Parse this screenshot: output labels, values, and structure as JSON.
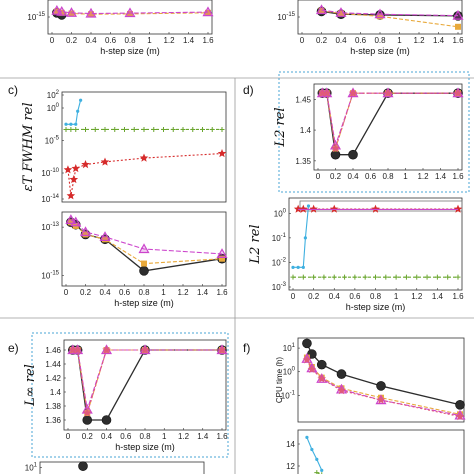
{
  "panel_labels": [
    "c)",
    "d)",
    "e)",
    "f)"
  ],
  "chart_data": [
    {
      "id": "a",
      "type": "line",
      "xlabel": "h-step size (m)",
      "ylim_log": [
        -16,
        -14
      ],
      "yticks": [
        "10^{-15}"
      ],
      "xticks": [
        "0",
        "0.2",
        "0.4",
        "0.6",
        "0.8",
        "1",
        "1.2",
        "1.4",
        "1.6"
      ],
      "xlim": [
        0,
        1.6
      ],
      "series": [
        {
          "color": "#2d2d2d",
          "marker": "circle",
          "dash": "none",
          "x": [
            0.05,
            0.1
          ],
          "y": [
            -14.7,
            -14.85
          ]
        },
        {
          "color": "#e8a93b",
          "marker": "square",
          "dash": "4,2",
          "x": [
            0.05,
            0.1,
            0.2,
            0.4,
            0.8,
            1.6
          ],
          "y": [
            -14.6,
            -14.7,
            -14.75,
            -14.8,
            -14.78,
            -14.7
          ]
        },
        {
          "color": "#cc44cc",
          "marker": "triangle",
          "dash": "5,2",
          "x": [
            0.05,
            0.1,
            0.2,
            0.4,
            0.8,
            1.6
          ],
          "y": [
            -14.55,
            -14.62,
            -14.7,
            -14.75,
            -14.72,
            -14.65
          ]
        }
      ]
    },
    {
      "id": "b",
      "type": "line",
      "xlabel": "h-step size (m)",
      "ylim_log": [
        -16,
        -14
      ],
      "yticks": [
        "10^{-15}"
      ],
      "xticks": [
        "0",
        "0.2",
        "0.4",
        "0.6",
        "0.8",
        "1",
        "1.2",
        "1.4",
        "1.6"
      ],
      "xlim": [
        0,
        1.6
      ],
      "series": [
        {
          "color": "#2d2d2d",
          "marker": "circle",
          "dash": "none",
          "x": [
            0.2,
            0.4,
            0.8,
            1.6
          ],
          "y": [
            -14.6,
            -14.8,
            -14.85,
            -14.92
          ]
        },
        {
          "color": "#e8a93b",
          "marker": "square",
          "dash": "4,2",
          "x": [
            0.2,
            0.4,
            0.8,
            1.6
          ],
          "y": [
            -14.55,
            -14.75,
            -14.95,
            -15.7
          ]
        },
        {
          "color": "#cc44cc",
          "marker": "triangle",
          "dash": "5,2",
          "x": [
            0.2,
            0.4,
            0.8,
            1.6
          ],
          "y": [
            -14.5,
            -14.7,
            -14.8,
            -14.9
          ]
        }
      ]
    },
    {
      "id": "c_top",
      "type": "line",
      "ylabel": "ε_{T_{FWHM}rel}",
      "ylim_log": [
        -14,
        2
      ],
      "yticks": [
        "10^{2}",
        "10^{0}",
        "10^{-5}",
        "10^{-10}",
        "10^{-14}"
      ],
      "ytick_vals": [
        2,
        0,
        -5,
        -10,
        -14
      ],
      "xlim": [
        0,
        1.6
      ],
      "series": [
        {
          "color": "#3fb0e0",
          "marker": "dot",
          "dash": "none",
          "x": [
            0.0,
            0.05,
            0.1,
            0.12,
            0.15
          ],
          "y": [
            -2.5,
            -2.5,
            -2.5,
            -0.5,
            1.2
          ]
        },
        {
          "color": "#6aa62e",
          "marker": "plus",
          "dash": "3,2",
          "x": [
            0.0,
            0.05,
            0.1,
            0.2,
            0.3,
            0.4,
            0.5,
            0.6,
            0.7,
            0.8,
            0.9,
            1.0,
            1.1,
            1.2,
            1.3,
            1.4,
            1.5,
            1.6
          ],
          "y": [
            -3.3,
            -3.3,
            -3.3,
            -3.3,
            -3.3,
            -3.3,
            -3.3,
            -3.3,
            -3.3,
            -3.3,
            -3.3,
            -3.3,
            -3.3,
            -3.3,
            -3.3,
            -3.3,
            -3.3,
            -3.3
          ]
        },
        {
          "color": "#d62b2b",
          "marker": "star",
          "dash": "2,2",
          "x": [
            0.02,
            0.05,
            0.08,
            0.1,
            0.2,
            0.4,
            0.8,
            1.6
          ],
          "y": [
            -9.5,
            -13.5,
            -11.0,
            -9.3,
            -8.7,
            -8.3,
            -7.7,
            -7.0
          ]
        }
      ]
    },
    {
      "id": "c_bottom",
      "type": "line",
      "xlabel": "h-step size (m)",
      "ylim_log": [
        -15.3,
        -12.5
      ],
      "yticks": [
        "10^{-13}",
        "10^{-15}"
      ],
      "ytick_vals": [
        -13,
        -15
      ],
      "xticks": [
        "0",
        "0.2",
        "0.4",
        "0.6",
        "0.8",
        "1",
        "1.2",
        "1.4",
        "1.6"
      ],
      "xlim": [
        0,
        1.6
      ],
      "series": [
        {
          "color": "#2d2d2d",
          "marker": "circle",
          "dash": "none",
          "x": [
            0.05,
            0.1,
            0.2,
            0.4,
            0.8,
            1.6
          ],
          "y": [
            -12.8,
            -12.9,
            -13.3,
            -13.5,
            -14.8,
            -14.3
          ]
        },
        {
          "color": "#e8a93b",
          "marker": "square",
          "dash": "4,2",
          "x": [
            0.05,
            0.1,
            0.2,
            0.4,
            0.8,
            1.6
          ],
          "y": [
            -12.8,
            -12.95,
            -13.3,
            -13.5,
            -14.5,
            -14.3
          ]
        },
        {
          "color": "#cc44cc",
          "marker": "triangle",
          "dash": "5,2",
          "x": [
            0.05,
            0.1,
            0.2,
            0.4,
            0.8,
            1.6
          ],
          "y": [
            -12.7,
            -12.8,
            -13.2,
            -13.4,
            -13.9,
            -14.1
          ]
        }
      ]
    },
    {
      "id": "d_top",
      "type": "line",
      "ylabel": "L_{2 rel}",
      "ylim": [
        1.34,
        1.47
      ],
      "yticks": [
        "1.45",
        "1.4",
        "1.35"
      ],
      "ytick_vals": [
        1.45,
        1.4,
        1.35
      ],
      "xticks": [
        "0",
        "0.2",
        "0.4",
        "0.6",
        "0.8",
        "1",
        "1.2",
        "1.4",
        "1.6"
      ],
      "xlim": [
        0,
        1.6
      ],
      "series": [
        {
          "color": "#2d2d2d",
          "marker": "circle",
          "dash": "none",
          "x": [
            0.05,
            0.1,
            0.2,
            0.4,
            0.8,
            1.6
          ],
          "y": [
            1.46,
            1.46,
            1.36,
            1.36,
            1.46,
            1.46
          ]
        },
        {
          "color": "#e8a93b",
          "marker": "square",
          "dash": "4,2",
          "x": [
            0.05,
            0.1,
            0.2,
            0.4,
            0.8,
            1.6
          ],
          "y": [
            1.46,
            1.46,
            1.37,
            1.46,
            1.46,
            1.46
          ]
        },
        {
          "color": "#cc44cc",
          "marker": "triangle",
          "dash": "5,2",
          "x": [
            0.05,
            0.1,
            0.2,
            0.4,
            0.8,
            1.6
          ],
          "y": [
            1.46,
            1.46,
            1.375,
            1.46,
            1.46,
            1.46
          ]
        },
        {
          "color": "#e05a7a",
          "marker": "star",
          "dash": "2,2",
          "x": [
            0.05,
            0.1,
            0.2,
            0.4,
            0.8,
            1.6
          ],
          "y": [
            1.46,
            1.46,
            1.37,
            1.46,
            1.46,
            1.46
          ]
        }
      ]
    },
    {
      "id": "d_bottom",
      "type": "line",
      "ylabel": "L_{2 rel}",
      "xlabel": "h-step size (m)",
      "ylim_log": [
        -3,
        0.5
      ],
      "yticks": [
        "10^{0}",
        "10^{-1}",
        "10^{-2}",
        "10^{-3}"
      ],
      "ytick_vals": [
        0,
        -1,
        -2,
        -3
      ],
      "xticks": [
        "0",
        "0.2",
        "0.4",
        "0.6",
        "0.8",
        "1",
        "1.2",
        "1.4",
        "1.6"
      ],
      "xlim": [
        0,
        1.6
      ],
      "series": [
        {
          "color": "#3fb0e0",
          "marker": "dot",
          "dash": "none",
          "x": [
            0.0,
            0.05,
            0.1,
            0.12,
            0.15
          ],
          "y": [
            -2.2,
            -2.2,
            -2.2,
            -1.0,
            0.3
          ]
        },
        {
          "color": "#6aa62e",
          "marker": "plus",
          "dash": "3,2",
          "x": [
            0.0,
            0.1,
            0.2,
            0.3,
            0.4,
            0.5,
            0.6,
            0.7,
            0.8,
            0.9,
            1.0,
            1.1,
            1.2,
            1.3,
            1.4,
            1.5,
            1.6
          ],
          "y": [
            -2.6,
            -2.6,
            -2.6,
            -2.6,
            -2.6,
            -2.6,
            -2.6,
            -2.6,
            -2.6,
            -2.6,
            -2.6,
            -2.6,
            -2.6,
            -2.6,
            -2.6,
            -2.6,
            -2.6
          ]
        },
        {
          "color": "#d62b2b",
          "marker": "star",
          "dash": "2,2",
          "x": [
            0.05,
            0.1,
            0.2,
            0.4,
            0.8,
            1.6
          ],
          "y": [
            0.17,
            0.17,
            0.17,
            0.17,
            0.17,
            0.17
          ]
        },
        {
          "color": "#cc44cc",
          "marker": "none",
          "dash": "none",
          "x": [
            0.05,
            1.6
          ],
          "y": [
            0.16,
            0.16
          ]
        }
      ]
    },
    {
      "id": "e",
      "type": "line",
      "ylabel": "L_{∞ rel}",
      "xlabel": "h-step size (m)",
      "ylim": [
        1.35,
        1.47
      ],
      "yticks": [
        "1.46",
        "1.44",
        "1.42",
        "1.4",
        "1.38",
        "1.36"
      ],
      "ytick_vals": [
        1.46,
        1.44,
        1.42,
        1.4,
        1.38,
        1.36
      ],
      "xticks": [
        "0",
        "0.2",
        "0.4",
        "0.6",
        "0.8",
        "1",
        "1.2",
        "1.4",
        "1.6"
      ],
      "xlim": [
        0,
        1.6
      ],
      "series": [
        {
          "color": "#2d2d2d",
          "marker": "circle",
          "dash": "none",
          "x": [
            0.05,
            0.1,
            0.2,
            0.4,
            0.8,
            1.6
          ],
          "y": [
            1.46,
            1.46,
            1.36,
            1.36,
            1.46,
            1.46
          ]
        },
        {
          "color": "#e8a93b",
          "marker": "square",
          "dash": "4,2",
          "x": [
            0.05,
            0.1,
            0.2,
            0.4,
            0.8,
            1.6
          ],
          "y": [
            1.46,
            1.46,
            1.37,
            1.46,
            1.46,
            1.46
          ]
        },
        {
          "color": "#cc44cc",
          "marker": "triangle",
          "dash": "5,2",
          "x": [
            0.05,
            0.1,
            0.2,
            0.4,
            0.8,
            1.6
          ],
          "y": [
            1.46,
            1.46,
            1.375,
            1.46,
            1.46,
            1.46
          ]
        },
        {
          "color": "#e05a7a",
          "marker": "star",
          "dash": "2,2",
          "x": [
            0.05,
            0.1,
            0.2,
            0.4,
            0.8,
            1.6
          ],
          "y": [
            1.46,
            1.46,
            1.37,
            1.46,
            1.46,
            1.46
          ]
        }
      ]
    },
    {
      "id": "f_top",
      "type": "line",
      "ylabel": "CPU time (h)",
      "ylim_log": [
        -2,
        1.3
      ],
      "yticks": [
        "10^{1}",
        "10^{0}",
        "10^{-1}"
      ],
      "ytick_vals": [
        1,
        0,
        -1
      ],
      "xlim": [
        0,
        1.6
      ],
      "series": [
        {
          "color": "#2d2d2d",
          "marker": "circle",
          "dash": "none",
          "x": [
            0.05,
            0.1,
            0.2,
            0.4,
            0.8,
            1.6
          ],
          "y": [
            1.2,
            0.75,
            0.3,
            -0.1,
            -0.6,
            -1.4
          ]
        },
        {
          "color": "#e8a93b",
          "marker": "square",
          "dash": "4,2",
          "x": [
            0.05,
            0.1,
            0.2,
            0.4,
            0.8,
            1.6
          ],
          "y": [
            0.6,
            0.2,
            -0.25,
            -0.7,
            -1.1,
            -1.8
          ]
        },
        {
          "color": "#cc44cc",
          "marker": "triangle",
          "dash": "5,2",
          "x": [
            0.05,
            0.1,
            0.2,
            0.4,
            0.8,
            1.6
          ],
          "y": [
            0.55,
            0.15,
            -0.3,
            -0.75,
            -1.2,
            -1.85
          ]
        },
        {
          "color": "#e05a7a",
          "marker": "star",
          "dash": "2,2",
          "x": [
            0.05,
            0.1,
            0.2,
            0.4,
            0.8,
            1.6
          ],
          "y": [
            0.5,
            0.1,
            -0.3,
            -0.8,
            -1.2,
            -1.9
          ]
        }
      ]
    },
    {
      "id": "f_bottom",
      "type": "line",
      "ylim": [
        11,
        15
      ],
      "yticks": [
        "14",
        "12"
      ],
      "ytick_vals": [
        14,
        12
      ],
      "xlim": [
        0,
        1.6
      ],
      "series": [
        {
          "color": "#3fb0e0",
          "marker": "dot",
          "dash": "none",
          "x": [
            0.05,
            0.1,
            0.15,
            0.2
          ],
          "y": [
            14.6,
            13.5,
            12.6,
            11.6
          ]
        },
        {
          "color": "#6aa62e",
          "marker": "plus",
          "dash": "3,2",
          "x": [
            0.15,
            0.2
          ],
          "y": [
            11.4,
            11.2
          ]
        }
      ]
    },
    {
      "id": "g",
      "type": "line",
      "yticks": [
        "10^{1}"
      ],
      "ytick_vals": [
        1
      ],
      "ylim_log": [
        0,
        1.2
      ],
      "xlim": [
        0,
        1.6
      ],
      "series": [
        {
          "color": "#2d2d2d",
          "marker": "circle",
          "dash": "none",
          "x": [
            0.4
          ],
          "y": [
            1.1
          ]
        }
      ]
    }
  ]
}
